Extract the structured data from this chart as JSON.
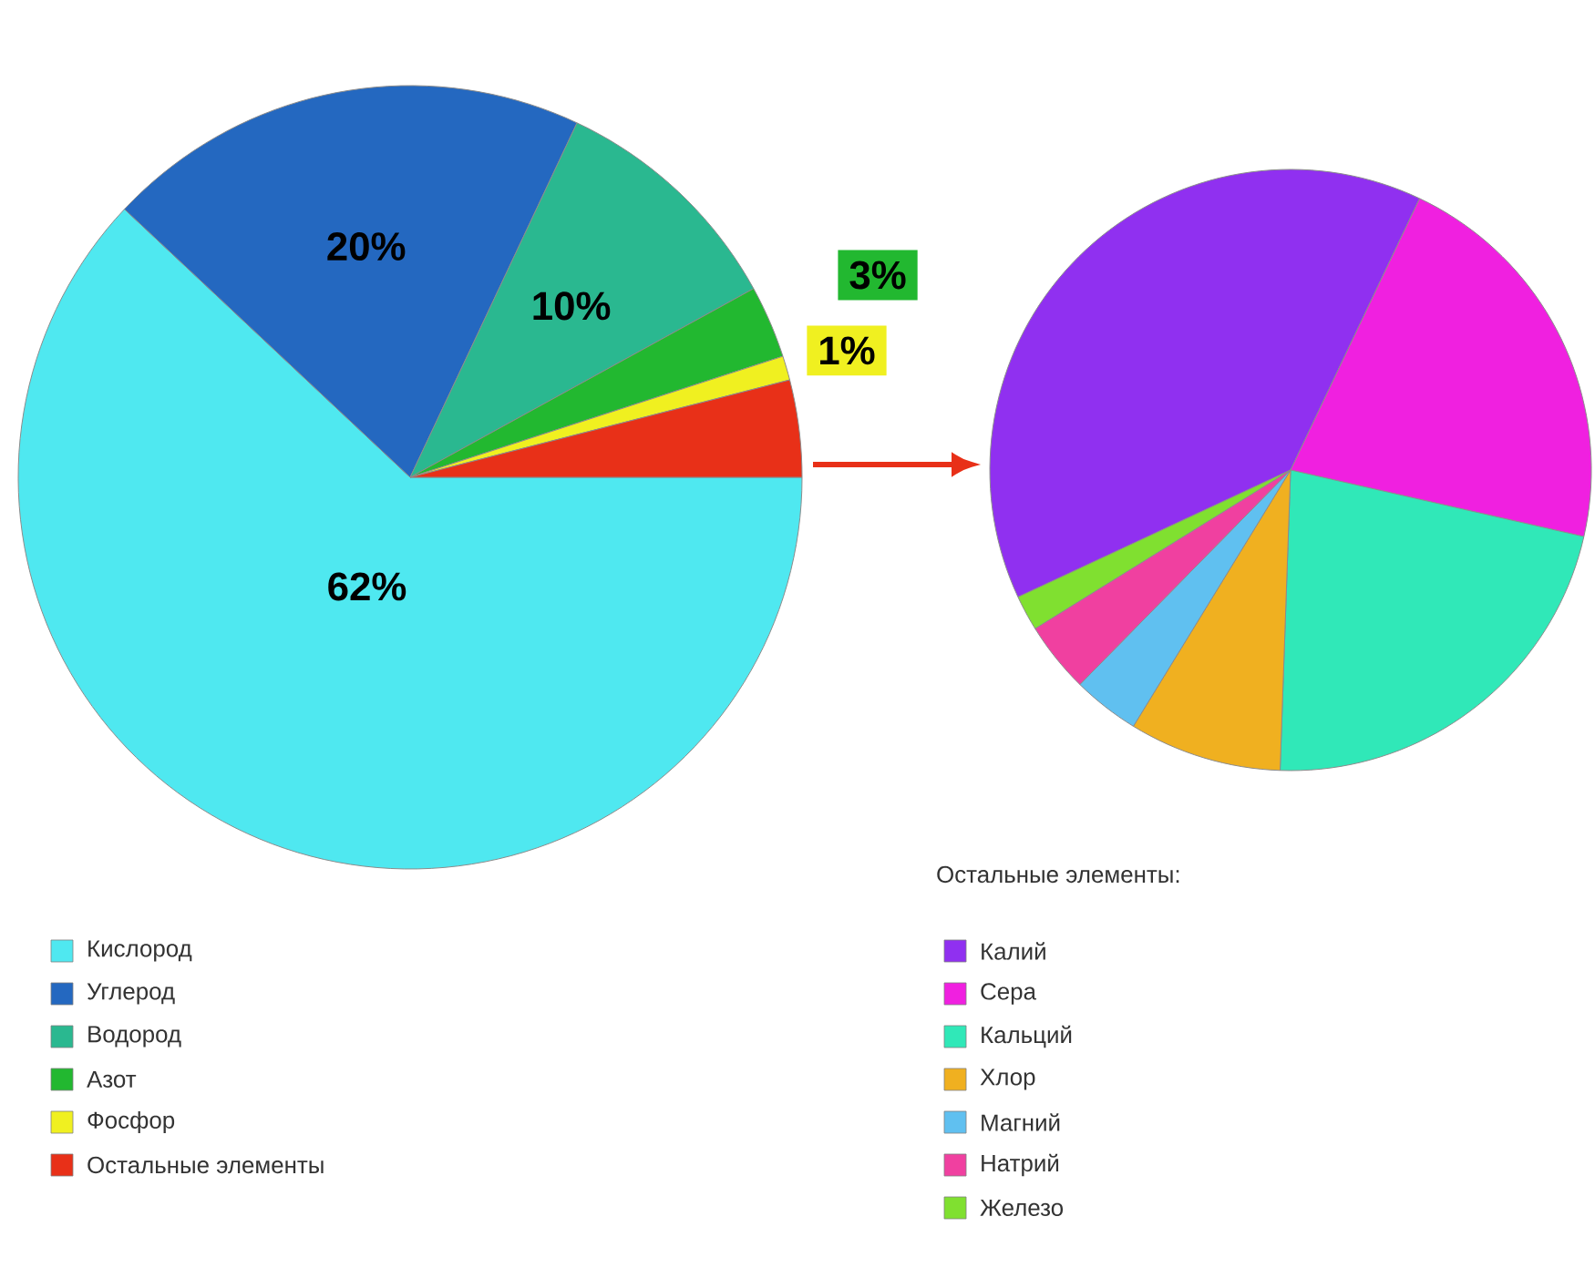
{
  "chart_data": [
    {
      "type": "pie",
      "categories": [
        "Кислород",
        "Углерод",
        "Водород",
        "Азот",
        "Фосфор",
        "Остальные элементы"
      ],
      "values": [
        62,
        20,
        10,
        3,
        1,
        4
      ],
      "colors": [
        "#4fe8f0",
        "#2468c0",
        "#2ab890",
        "#22b830",
        "#f0f020",
        "#e83018"
      ],
      "value_labels": [
        "62%",
        "20%",
        "10%",
        "3%",
        "1%",
        null
      ],
      "legend": "bottom"
    },
    {
      "type": "pie",
      "legend_title": "Остальные элементы:",
      "categories": [
        "Калий",
        "Сера",
        "Кальций",
        "Хлор",
        "Магний",
        "Натрий",
        "Железо"
      ],
      "values": [
        39,
        21.5,
        22,
        8.2,
        3.6,
        3.8,
        1.9
      ],
      "colors": [
        "#9030f0",
        "#f020e0",
        "#30e8b8",
        "#f0b020",
        "#60c0f0",
        "#f040a0",
        "#80e030"
      ],
      "legend": "bottom"
    }
  ]
}
